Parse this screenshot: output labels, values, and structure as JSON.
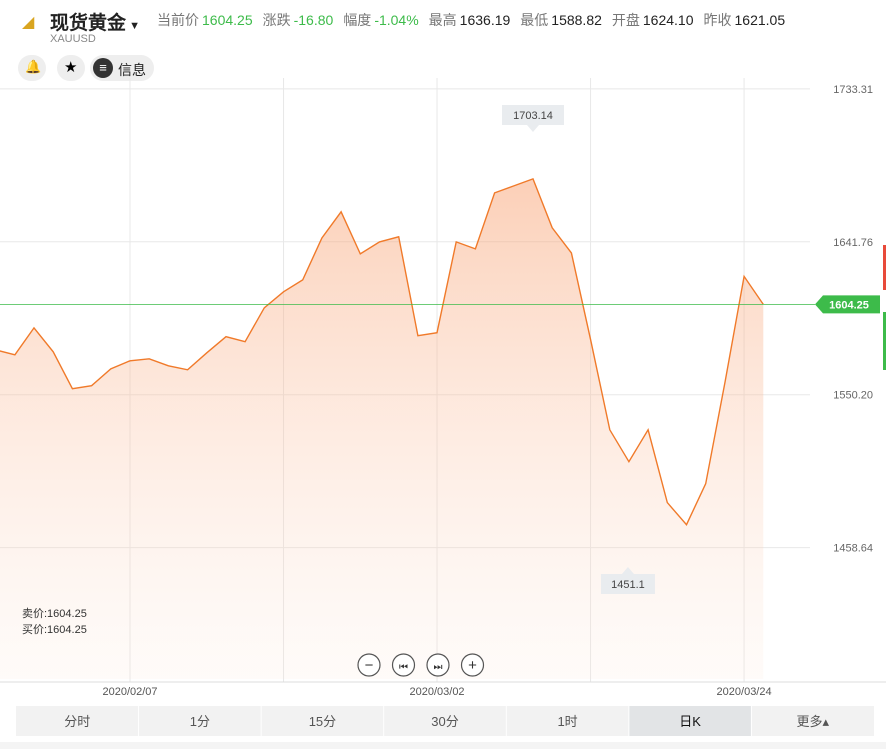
{
  "header": {
    "title": "现货黄金",
    "symbol": "XAUUSD",
    "stats": [
      {
        "label": "当前价",
        "value": "1604.25",
        "up": false,
        "colored": true
      },
      {
        "label": "涨跌",
        "value": "-16.80",
        "colored": true
      },
      {
        "label": "幅度",
        "value": "-1.04%",
        "colored": true
      },
      {
        "label": "最高",
        "value": "1636.19",
        "colored": false
      },
      {
        "label": "最低",
        "value": "1588.82",
        "colored": false
      },
      {
        "label": "开盘",
        "value": "1624.10",
        "colored": false
      },
      {
        "label": "昨收",
        "value": "1621.05",
        "colored": false
      }
    ],
    "info_button": "信息"
  },
  "chart_data": {
    "type": "area",
    "color": "#f07a2a",
    "categories": [
      null,
      null,
      null,
      null,
      null,
      null,
      null,
      "2020/02/07",
      null,
      null,
      null,
      null,
      null,
      null,
      null,
      null,
      null,
      null,
      null,
      null,
      null,
      null,
      null,
      "2020/03/02",
      null,
      null,
      null,
      null,
      null,
      null,
      null,
      null,
      null,
      null,
      null,
      null,
      null,
      null,
      null,
      "2020/03/24",
      null
    ],
    "values": [
      1577.0,
      1574.1,
      1590.2,
      1575.9,
      1553.8,
      1555.6,
      1565.7,
      1570.5,
      1571.7,
      1567.5,
      1565.1,
      1575.3,
      1584.9,
      1581.9,
      1602.2,
      1611.8,
      1618.9,
      1644.0,
      1659.7,
      1634.5,
      1641.7,
      1644.7,
      1585.5,
      1587.3,
      1641.7,
      1637.5,
      1671.0,
      1675.2,
      1679.4,
      1650.1,
      1635.1,
      1583.1,
      1529.2,
      1510.1,
      1529.2,
      1485.6,
      1472.4,
      1496.9,
      1557.3,
      1621.0,
      1604.25
    ],
    "ylim": [
      1380,
      1735
    ],
    "yticks": [
      {
        "value": 1458.64,
        "label": "1458.64"
      },
      {
        "value": 1550.2,
        "label": "1550.20"
      },
      {
        "value": 1641.76,
        "label": "1641.76"
      },
      {
        "value": 1733.31,
        "label": "1733.31"
      }
    ],
    "grid": true,
    "current_price": 1604.25,
    "current_color": "#3dbb4a",
    "high": 1703.14,
    "low": 1451.1,
    "sell": "卖价:1604.25",
    "buy": "买价:1604.25"
  },
  "tabs": [
    "分时",
    "1分",
    "15分",
    "30分",
    "1时",
    "日K",
    "更多▴"
  ],
  "selected_tab": 5
}
